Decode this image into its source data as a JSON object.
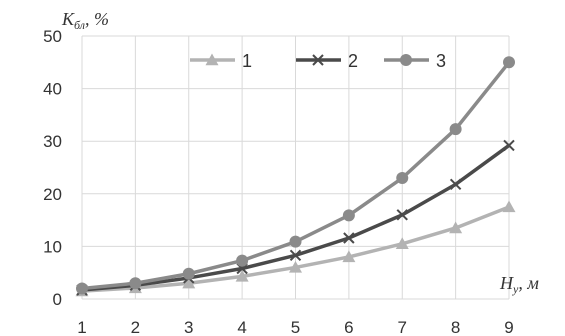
{
  "chart_data": {
    "type": "line",
    "title": "",
    "ylabel": {
      "main": "K",
      "sub": "бл",
      "unit": ", %"
    },
    "xlabel": {
      "main": "H",
      "sub": "y",
      "unit": ", м"
    },
    "x": [
      1,
      2,
      3,
      4,
      5,
      6,
      7,
      8,
      9
    ],
    "xlim": [
      1,
      9
    ],
    "ylim": [
      0,
      50
    ],
    "yticks": [
      0,
      10,
      20,
      30,
      40,
      50
    ],
    "grid": true,
    "legend": "top-center",
    "series": [
      {
        "name": "1",
        "marker": "triangle",
        "color": "#b3b3b3",
        "values": [
          1.5,
          2.1,
          3.0,
          4.3,
          6.0,
          8.0,
          10.5,
          13.5,
          17.5
        ]
      },
      {
        "name": "2",
        "marker": "x",
        "color": "#4a4a4a",
        "values": [
          1.7,
          2.6,
          4.0,
          5.8,
          8.3,
          11.6,
          16.0,
          21.8,
          29.2
        ]
      },
      {
        "name": "3",
        "marker": "circle",
        "color": "#8a8a8a",
        "values": [
          2.0,
          3.0,
          4.8,
          7.3,
          10.9,
          15.9,
          23.0,
          32.3,
          45.0
        ]
      }
    ]
  }
}
